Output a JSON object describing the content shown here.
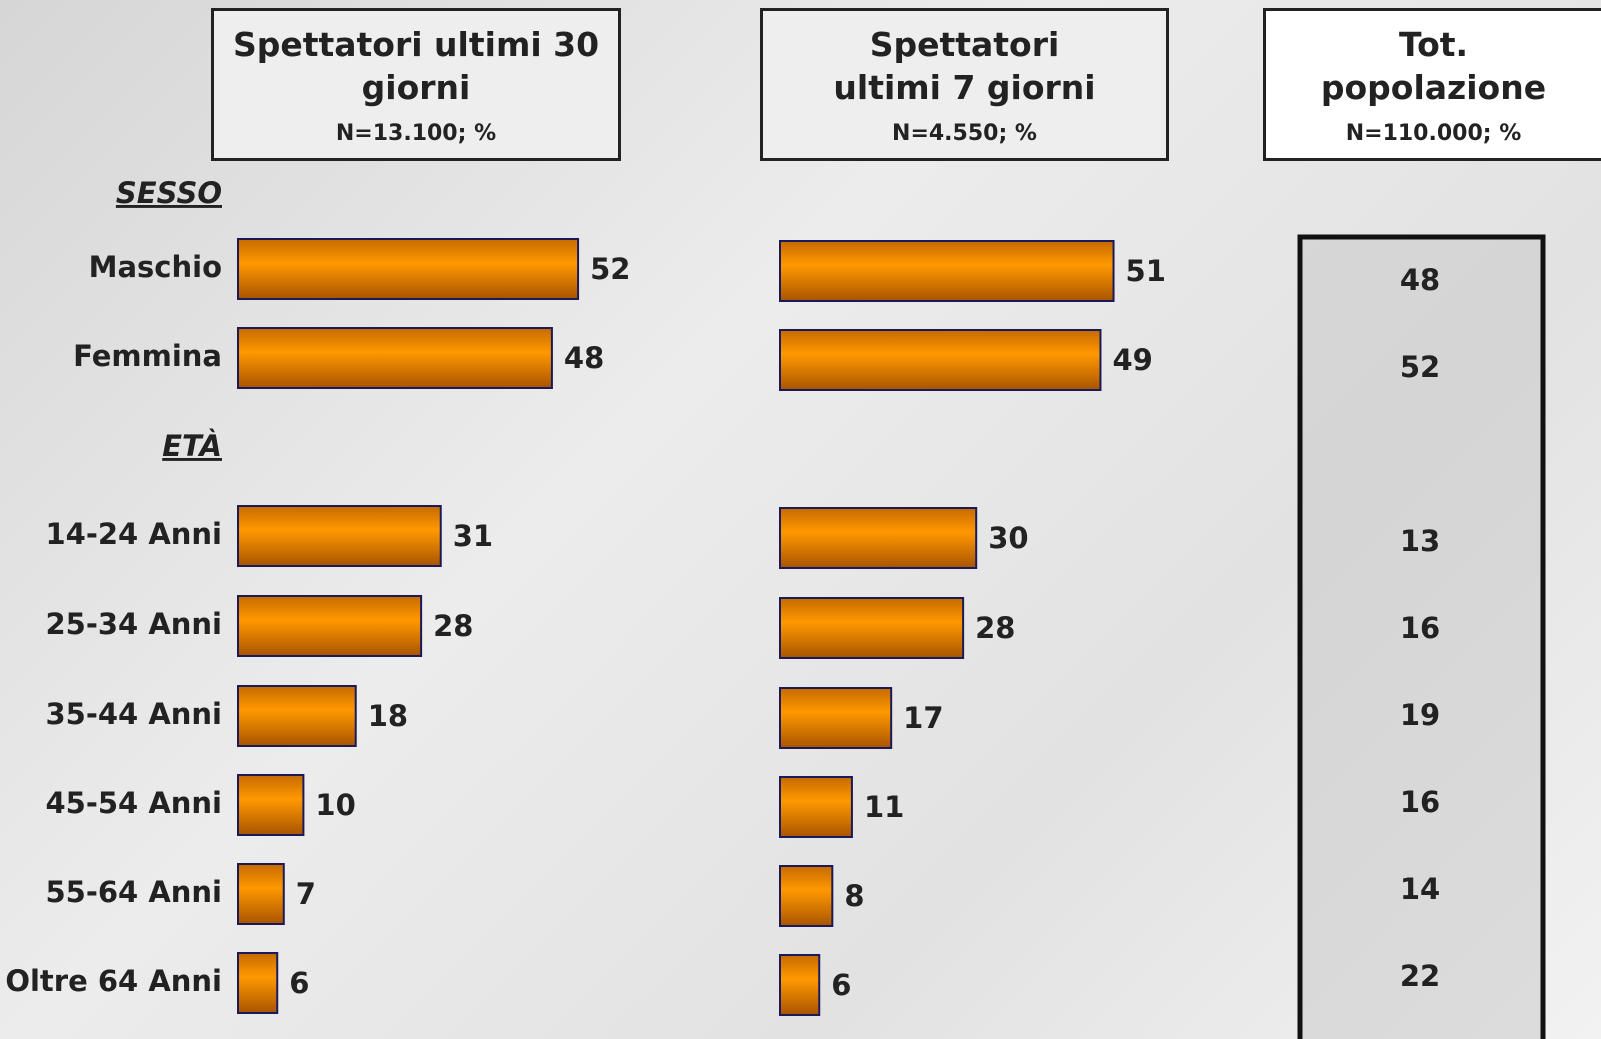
{
  "groups": [
    {
      "title": "SESSO",
      "categories": [
        "Maschio",
        "Femmina"
      ]
    },
    {
      "title": "ETÀ",
      "categories": [
        "14-24 Anni",
        "25-34 Anni",
        "35-44 Anni",
        "45-54 Anni",
        "55-64 Anni",
        "Oltre 64 Anni"
      ]
    }
  ],
  "chart_data": [
    {
      "type": "bar",
      "title": "Spettatori ultimi 30 giorni",
      "subtitle": "N=13.100; %",
      "color": "#ff9900",
      "values": [
        52,
        48,
        31,
        28,
        18,
        10,
        7,
        6
      ]
    },
    {
      "type": "bar",
      "title": "Spettatori ultimi 7 giorni",
      "subtitle": "N=4.550; %",
      "color": "#ff9900",
      "values": [
        51,
        49,
        30,
        28,
        17,
        11,
        8,
        6
      ]
    }
  ],
  "population": {
    "title": "Tot. popolazione",
    "subtitle": "N=110.000; %",
    "values": [
      48,
      52,
      13,
      16,
      19,
      16,
      14,
      22
    ]
  }
}
